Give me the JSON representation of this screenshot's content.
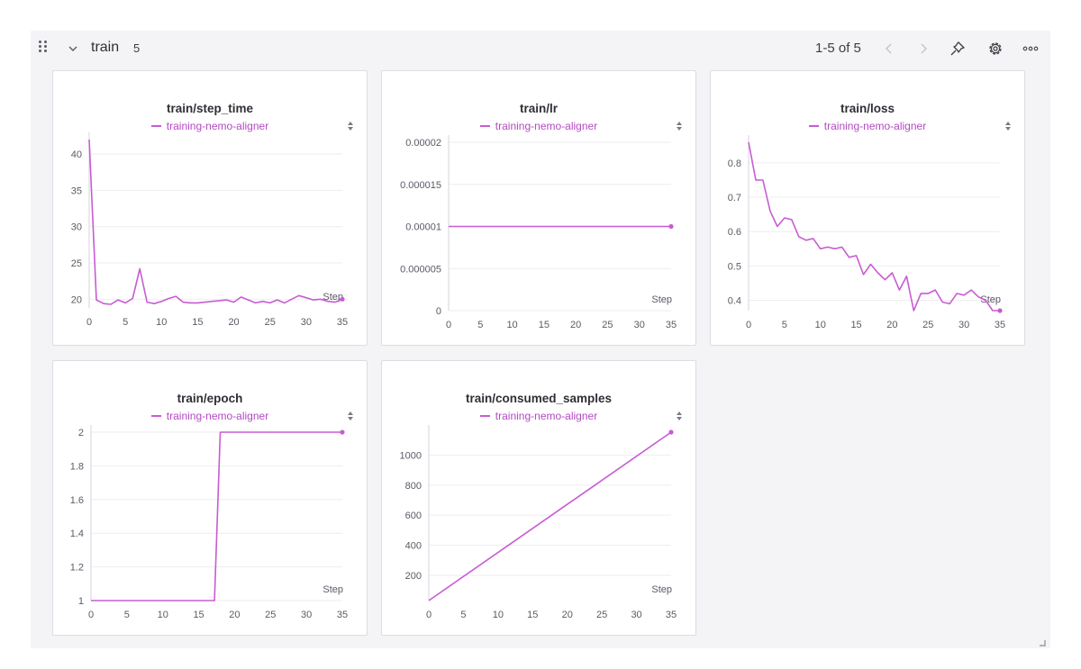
{
  "section": {
    "title": "train",
    "count": "5",
    "pager": "1-5 of 5"
  },
  "colors": {
    "series": "#c95bd3",
    "legend_text": "#b449c3",
    "grid": "#eeeef2"
  },
  "icons": {
    "drag": "drag-handle-icon",
    "collapse": "chevron-down-icon",
    "prev": "chevron-left-icon",
    "next": "chevron-right-icon",
    "pin": "pin-icon",
    "settings": "gear-icon",
    "more": "more-horizontal-icon",
    "sort": "sort-icon",
    "resize": "resize-handle-icon"
  },
  "chart_data": [
    {
      "type": "line",
      "title": "train/step_time",
      "series": [
        {
          "name": "training-nemo-aligner"
        }
      ],
      "xlabel": "Step",
      "xlim": [
        0,
        35
      ],
      "ylim": [
        18.8,
        42
      ],
      "xticks": [
        0,
        5,
        10,
        15,
        20,
        25,
        30,
        35
      ],
      "yticks": [
        20,
        25,
        30,
        35,
        40
      ],
      "ytick_labels": [
        "20",
        "25",
        "30",
        "35",
        "40"
      ],
      "x": [
        0,
        1,
        2,
        3,
        4,
        5,
        6,
        7,
        8,
        9,
        10,
        11,
        12,
        13,
        14,
        15,
        16,
        17,
        18,
        19,
        20,
        21,
        22,
        23,
        24,
        25,
        26,
        27,
        28,
        29,
        30,
        31,
        32,
        33,
        34,
        35
      ],
      "values": [
        42,
        19.9,
        19.4,
        19.3,
        19.9,
        19.5,
        20.1,
        24.2,
        19.6,
        19.4,
        19.7,
        20.1,
        20.4,
        19.6,
        19.5,
        19.5,
        19.6,
        19.7,
        19.8,
        19.9,
        19.6,
        20.3,
        19.9,
        19.5,
        19.7,
        19.5,
        19.9,
        19.5,
        20.0,
        20.5,
        20.2,
        19.9,
        20.0,
        19.7,
        19.6,
        20.0
      ],
      "marker_last": true,
      "grid": true
    },
    {
      "type": "line",
      "title": "train/lr",
      "series": [
        {
          "name": "training-nemo-aligner"
        }
      ],
      "xlabel": "Step",
      "xlim": [
        0,
        35
      ],
      "ylim": [
        0,
        2e-05
      ],
      "xticks": [
        0,
        5,
        10,
        15,
        20,
        25,
        30,
        35
      ],
      "yticks": [
        0,
        5e-06,
        1e-05,
        1.5e-05,
        2e-05
      ],
      "ytick_labels": [
        "0",
        "0.000005",
        "0.00001",
        "0.000015",
        "0.00002"
      ],
      "x": [
        0,
        35
      ],
      "values": [
        1e-05,
        1e-05
      ],
      "marker_last": true,
      "grid": true
    },
    {
      "type": "line",
      "title": "train/loss",
      "series": [
        {
          "name": "training-nemo-aligner"
        }
      ],
      "xlabel": "Step",
      "xlim": [
        0,
        35
      ],
      "ylim": [
        0.37,
        0.86
      ],
      "xticks": [
        0,
        5,
        10,
        15,
        20,
        25,
        30,
        35
      ],
      "yticks": [
        0.4,
        0.5,
        0.6,
        0.7,
        0.8
      ],
      "ytick_labels": [
        "0.4",
        "0.5",
        "0.6",
        "0.7",
        "0.8"
      ],
      "x": [
        0,
        1,
        2,
        3,
        4,
        5,
        6,
        7,
        8,
        9,
        10,
        11,
        12,
        13,
        14,
        15,
        16,
        17,
        18,
        19,
        20,
        21,
        22,
        23,
        24,
        25,
        26,
        27,
        28,
        29,
        30,
        31,
        32,
        33,
        34,
        35
      ],
      "values": [
        0.86,
        0.75,
        0.75,
        0.66,
        0.615,
        0.64,
        0.635,
        0.585,
        0.575,
        0.58,
        0.55,
        0.555,
        0.55,
        0.555,
        0.525,
        0.53,
        0.475,
        0.505,
        0.48,
        0.46,
        0.48,
        0.43,
        0.47,
        0.37,
        0.42,
        0.42,
        0.43,
        0.395,
        0.39,
        0.42,
        0.415,
        0.43,
        0.41,
        0.4,
        0.37,
        0.37
      ],
      "marker_last": true,
      "grid": true
    },
    {
      "type": "line",
      "title": "train/epoch",
      "series": [
        {
          "name": "training-nemo-aligner"
        }
      ],
      "xlabel": "Step",
      "xlim": [
        0,
        35
      ],
      "ylim": [
        1,
        2
      ],
      "xticks": [
        0,
        5,
        10,
        15,
        20,
        25,
        30,
        35
      ],
      "yticks": [
        1,
        1.2,
        1.4,
        1.6,
        1.8,
        2
      ],
      "ytick_labels": [
        "1",
        "1.2",
        "1.4",
        "1.6",
        "1.8",
        "2"
      ],
      "x": [
        0,
        17.2,
        18,
        35
      ],
      "values": [
        1,
        1,
        2,
        2
      ],
      "marker_last": true,
      "grid": true
    },
    {
      "type": "line",
      "title": "train/consumed_samples",
      "series": [
        {
          "name": "training-nemo-aligner"
        }
      ],
      "xlabel": "Step",
      "xlim": [
        0,
        35
      ],
      "ylim": [
        32,
        1152
      ],
      "xticks": [
        0,
        5,
        10,
        15,
        20,
        25,
        30,
        35
      ],
      "yticks": [
        200,
        400,
        600,
        800,
        1000
      ],
      "ytick_labels": [
        "200",
        "400",
        "600",
        "800",
        "1000"
      ],
      "x": [
        0,
        35
      ],
      "values": [
        32,
        1152
      ],
      "marker_last": true,
      "grid": true
    }
  ]
}
